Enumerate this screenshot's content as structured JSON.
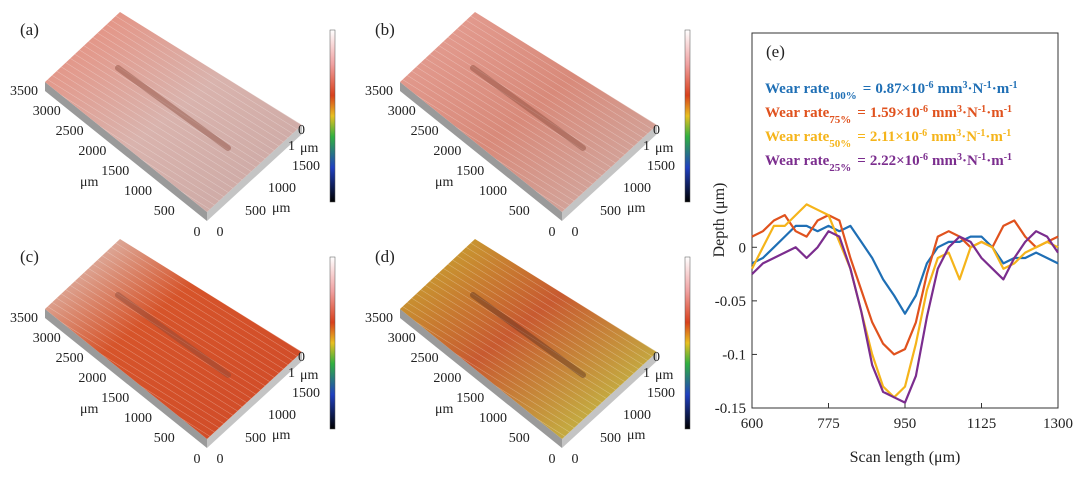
{
  "panels": [
    {
      "label": "(a)",
      "long_ticks": [
        3500,
        3000,
        2500,
        2000,
        1500,
        1000,
        500,
        0
      ],
      "short_ticks": [
        0,
        500,
        1000,
        1500
      ],
      "height_ticks": [
        0,
        1
      ],
      "unit": "μm"
    },
    {
      "label": "(b)",
      "long_ticks": [
        3500,
        3000,
        2500,
        2000,
        1500,
        1000,
        500,
        0
      ],
      "short_ticks": [
        0,
        500,
        1000,
        1500
      ],
      "height_ticks": [
        0,
        1
      ],
      "unit": "μm"
    },
    {
      "label": "(c)",
      "long_ticks": [
        3500,
        3000,
        2500,
        2000,
        1500,
        1000,
        500,
        0
      ],
      "short_ticks": [
        0,
        500,
        1000,
        1500
      ],
      "height_ticks": [
        0,
        1
      ],
      "unit": "μm"
    },
    {
      "label": "(d)",
      "long_ticks": [
        3500,
        3000,
        2500,
        2000,
        1500,
        1000,
        500,
        0
      ],
      "short_ticks": [
        0,
        500,
        1000,
        1500
      ],
      "height_ticks": [
        0,
        1
      ],
      "unit": "μm"
    }
  ],
  "chart_data": {
    "type": "line",
    "panel_label": "(e)",
    "x_label": "Scan length (μm)",
    "y_label": "Depth (μm)",
    "xlim": [
      600,
      1300
    ],
    "xticks": [
      600,
      775,
      950,
      1125,
      1300
    ],
    "ylim": [
      -0.15,
      0.2
    ],
    "yticks": [
      -0.15,
      -0.1,
      -0.05,
      0
    ],
    "x": [
      600,
      625,
      650,
      675,
      700,
      725,
      750,
      775,
      800,
      825,
      850,
      875,
      900,
      925,
      950,
      975,
      1000,
      1025,
      1050,
      1075,
      1100,
      1125,
      1150,
      1175,
      1200,
      1225,
      1250,
      1275,
      1300
    ],
    "legend_format": {
      "equals": "=",
      "multiplier": "×10",
      "power": "-6",
      "unit": [
        [
          "mm",
          "3"
        ],
        [
          "·N",
          "-1"
        ],
        [
          "·m",
          "-1"
        ]
      ]
    },
    "series": [
      {
        "name": "Wear rate",
        "subscript": "100%",
        "wear_rate": 0.87,
        "color": "#1f6fb5",
        "values": [
          -0.015,
          -0.01,
          0.0,
          0.01,
          0.02,
          0.02,
          0.015,
          0.02,
          0.015,
          0.02,
          0.005,
          -0.01,
          -0.03,
          -0.045,
          -0.062,
          -0.045,
          -0.015,
          0.0,
          0.005,
          0.005,
          0.01,
          0.01,
          0.0,
          -0.015,
          -0.01,
          -0.01,
          -0.005,
          -0.01,
          -0.015
        ]
      },
      {
        "name": "Wear rate",
        "subscript": "75%",
        "wear_rate": 1.59,
        "color": "#e0521e",
        "values": [
          0.01,
          0.015,
          0.025,
          0.03,
          0.015,
          0.01,
          0.025,
          0.03,
          0.025,
          -0.01,
          -0.04,
          -0.07,
          -0.09,
          -0.1,
          -0.095,
          -0.07,
          -0.025,
          0.01,
          0.015,
          0.01,
          0.0,
          0.005,
          0.0,
          0.02,
          0.025,
          0.01,
          0.0,
          0.005,
          0.01
        ]
      },
      {
        "name": "Wear rate",
        "subscript": "50%",
        "wear_rate": 2.11,
        "color": "#f5b41a",
        "values": [
          -0.02,
          0.0,
          0.02,
          0.02,
          0.03,
          0.04,
          0.035,
          0.03,
          0.005,
          -0.02,
          -0.06,
          -0.1,
          -0.13,
          -0.14,
          -0.13,
          -0.09,
          -0.04,
          -0.01,
          -0.005,
          -0.03,
          0.0,
          0.005,
          0.0,
          -0.02,
          -0.015,
          -0.005,
          0.0,
          0.005,
          0.0
        ]
      },
      {
        "name": "Wear rate",
        "subscript": "25%",
        "wear_rate": 2.22,
        "color": "#7b2d8e",
        "values": [
          -0.025,
          -0.015,
          -0.01,
          -0.005,
          0.0,
          -0.01,
          0.0,
          0.015,
          0.01,
          -0.02,
          -0.06,
          -0.11,
          -0.135,
          -0.14,
          -0.145,
          -0.12,
          -0.065,
          -0.02,
          0.0,
          0.01,
          0.005,
          -0.01,
          -0.02,
          -0.03,
          -0.01,
          0.005,
          0.015,
          0.01,
          -0.005
        ]
      }
    ]
  }
}
